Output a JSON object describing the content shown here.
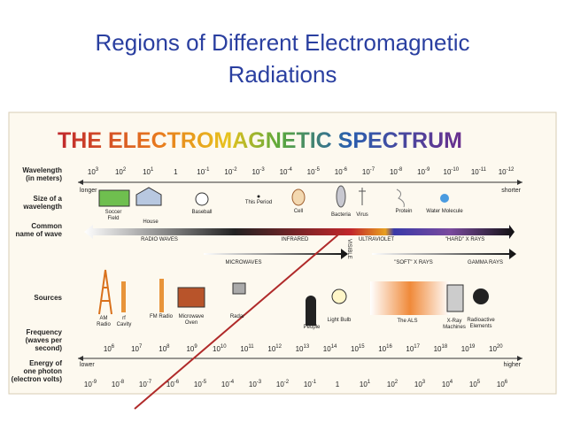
{
  "title": "Regions of Different Electromagnetic Radiations",
  "diagram": {
    "heading": "THE ELECTROMAGNETIC SPECTRUM",
    "row_labels": {
      "wavelength": [
        "Wavelength",
        "(in meters)"
      ],
      "size": [
        "Size of a",
        "wavelength"
      ],
      "name": [
        "Common",
        "name of wave"
      ],
      "sources": [
        "Sources"
      ],
      "frequency": [
        "Frequency",
        "(waves per",
        "second)"
      ],
      "energy": [
        "Energy of",
        "one photon",
        "(electron volts)"
      ]
    },
    "wavelength_ticks": [
      {
        "base": "10",
        "exp": "3"
      },
      {
        "base": "10",
        "exp": "2"
      },
      {
        "base": "10",
        "exp": "1"
      },
      "1",
      {
        "base": "10",
        "exp": "-1"
      },
      {
        "base": "10",
        "exp": "-2"
      },
      {
        "base": "10",
        "exp": "-3"
      },
      {
        "base": "10",
        "exp": "-4"
      },
      {
        "base": "10",
        "exp": "-5"
      },
      {
        "base": "10",
        "exp": "-6"
      },
      {
        "base": "10",
        "exp": "-7"
      },
      {
        "base": "10",
        "exp": "-8"
      },
      {
        "base": "10",
        "exp": "-9"
      },
      {
        "base": "10",
        "exp": "-10"
      },
      {
        "base": "10",
        "exp": "-11"
      },
      {
        "base": "10",
        "exp": "-12"
      }
    ],
    "size_ends": [
      "longer",
      "shorter"
    ],
    "size_objects": [
      [
        "Soccer",
        "Field"
      ],
      [
        "House"
      ],
      [
        "Baseball"
      ],
      [
        "This Period"
      ],
      [
        "Cell"
      ],
      [
        "Bacteria"
      ],
      [
        "Virus"
      ],
      [
        "Protein"
      ],
      [
        "Water Molecule"
      ]
    ],
    "wave_names": [
      "RADIO WAVES",
      "INFRARED",
      "VISIBLE",
      "ULTRAVIOLET",
      "\"HARD\" X RAYS",
      "MICROWAVES",
      "\"SOFT\" X RAYS",
      "GAMMA RAYS"
    ],
    "sources": [
      [
        "AM",
        "Radio"
      ],
      [
        "rf",
        "Cavity"
      ],
      [
        "FM Radio"
      ],
      [
        "Microwave",
        "Oven"
      ],
      [
        "Radar"
      ],
      [
        "People"
      ],
      [
        "Light Bulb"
      ],
      [
        "The ALS"
      ],
      [
        "X-Ray",
        "Machines"
      ],
      [
        "Radioactive",
        "Elements"
      ]
    ],
    "frequency_ticks": [
      {
        "base": "10",
        "exp": "6"
      },
      {
        "base": "10",
        "exp": "7"
      },
      {
        "base": "10",
        "exp": "8"
      },
      {
        "base": "10",
        "exp": "9"
      },
      {
        "base": "10",
        "exp": "10"
      },
      {
        "base": "10",
        "exp": "11"
      },
      {
        "base": "10",
        "exp": "12"
      },
      {
        "base": "10",
        "exp": "13"
      },
      {
        "base": "10",
        "exp": "14"
      },
      {
        "base": "10",
        "exp": "15"
      },
      {
        "base": "10",
        "exp": "16"
      },
      {
        "base": "10",
        "exp": "17"
      },
      {
        "base": "10",
        "exp": "18"
      },
      {
        "base": "10",
        "exp": "19"
      },
      {
        "base": "10",
        "exp": "20"
      }
    ],
    "energy_ends": [
      "lower",
      "higher"
    ],
    "energy_ticks": [
      {
        "base": "10",
        "exp": "-9"
      },
      {
        "base": "10",
        "exp": "-8"
      },
      {
        "base": "10",
        "exp": "-7"
      },
      {
        "base": "10",
        "exp": "-6"
      },
      {
        "base": "10",
        "exp": "-5"
      },
      {
        "base": "10",
        "exp": "-4"
      },
      {
        "base": "10",
        "exp": "-3"
      },
      {
        "base": "10",
        "exp": "-2"
      },
      {
        "base": "10",
        "exp": "-1"
      },
      "1",
      {
        "base": "10",
        "exp": "1"
      },
      {
        "base": "10",
        "exp": "2"
      },
      {
        "base": "10",
        "exp": "3"
      },
      {
        "base": "10",
        "exp": "4"
      },
      {
        "base": "10",
        "exp": "5"
      },
      {
        "base": "10",
        "exp": "6"
      }
    ]
  }
}
